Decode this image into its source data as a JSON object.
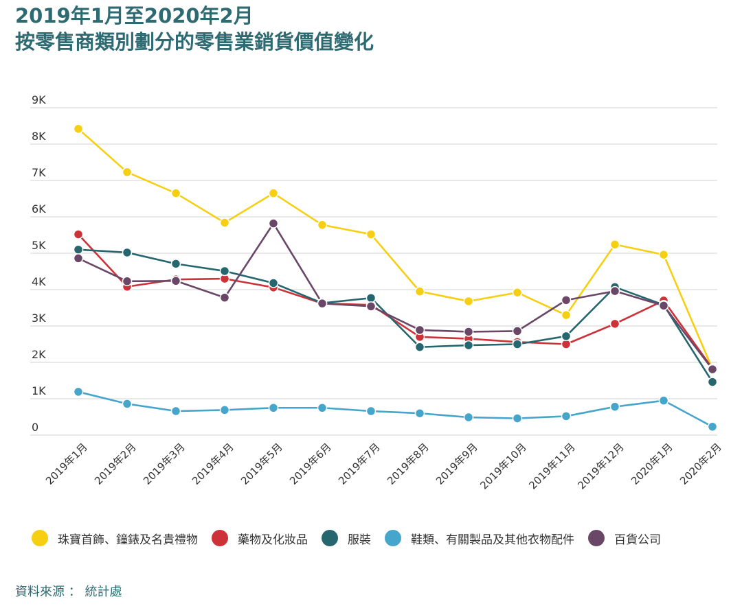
{
  "title": {
    "line1": "2019年1月至2020年2月",
    "line2": "按零售商類別劃分的零售業銷貨價值變化"
  },
  "source": "資料來源 ： 統計處",
  "chart_data": {
    "type": "line",
    "categories": [
      "2019年1月",
      "2019年2月",
      "2019年3月",
      "2019年4月",
      "2019年5月",
      "2019年6月",
      "2019年7月",
      "2019年8月",
      "2019年9月",
      "2019年10月",
      "2019年11月",
      "2019年12月",
      "2020年1月",
      "2020年2月"
    ],
    "y_ticks": [
      {
        "value": 0,
        "label": "0"
      },
      {
        "value": 1000,
        "label": "1K"
      },
      {
        "value": 2000,
        "label": "2K"
      },
      {
        "value": 3000,
        "label": "3K"
      },
      {
        "value": 4000,
        "label": "4K"
      },
      {
        "value": 5000,
        "label": "5K"
      },
      {
        "value": 6000,
        "label": "6K"
      },
      {
        "value": 7000,
        "label": "7K"
      },
      {
        "value": 8000,
        "label": "8K"
      },
      {
        "value": 9000,
        "label": "9K"
      }
    ],
    "ylim": [
      0,
      9000
    ],
    "grid": true,
    "legend_position": "bottom",
    "series": [
      {
        "name": "珠寶首飾、鐘錶及名貴禮物",
        "color": "#f7cf12",
        "values": [
          8420,
          7230,
          6650,
          5840,
          6650,
          5780,
          5520,
          3950,
          3680,
          3920,
          3300,
          5240,
          4960,
          1820
        ]
      },
      {
        "name": "藥物及化妝品",
        "color": "#cc3238",
        "values": [
          5520,
          4080,
          4280,
          4300,
          4060,
          3620,
          3580,
          2700,
          2650,
          2560,
          2500,
          3060,
          3700,
          1830
        ]
      },
      {
        "name": "服裝",
        "color": "#26666e",
        "values": [
          5100,
          5020,
          4710,
          4510,
          4180,
          3630,
          3770,
          2420,
          2470,
          2500,
          2720,
          4070,
          3580,
          1460
        ]
      },
      {
        "name": "鞋類、有關製品及其他衣物配件",
        "color": "#46a5cb",
        "values": [
          1190,
          860,
          660,
          690,
          750,
          750,
          660,
          600,
          490,
          460,
          520,
          780,
          950,
          230
        ]
      },
      {
        "name": "百貨公司",
        "color": "#6a4767",
        "values": [
          4860,
          4230,
          4240,
          3780,
          5820,
          3620,
          3540,
          2890,
          2840,
          2860,
          3710,
          3960,
          3560,
          1810
        ]
      }
    ]
  }
}
